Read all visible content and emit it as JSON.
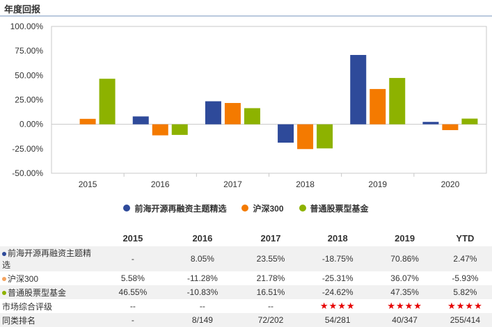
{
  "header": {
    "title": "年度回报"
  },
  "chart_data": {
    "type": "bar",
    "categories": [
      "2015",
      "2016",
      "2017",
      "2018",
      "2019",
      "2020"
    ],
    "series": [
      {
        "name": "前海开源再融资主题精选",
        "color": "#2e4a9a",
        "values": [
          null,
          8.05,
          23.55,
          -18.75,
          70.86,
          2.47
        ]
      },
      {
        "name": "沪深300",
        "color": "#f47a00",
        "values": [
          5.58,
          -11.28,
          21.78,
          -25.31,
          36.07,
          -5.93
        ]
      },
      {
        "name": "普通股票型基金",
        "color": "#8db200",
        "values": [
          46.55,
          -10.83,
          16.51,
          -24.62,
          47.35,
          5.82
        ]
      }
    ],
    "yticks": [
      "100.00%",
      "75.00%",
      "50.00%",
      "25.00%",
      "0.00%",
      "-25.00%",
      "-50.00%"
    ],
    "ylim": [
      -50,
      100
    ],
    "grid": false,
    "legend_position": "bottom"
  },
  "table": {
    "headers": [
      "",
      "2015",
      "2016",
      "2017",
      "2018",
      "2019",
      "YTD"
    ],
    "rows": [
      {
        "label": "前海开源再融资主题精选",
        "dot_color": "#2e4a9a",
        "cells": [
          "-",
          "8.05%",
          "23.55%",
          "-18.75%",
          "70.86%",
          "2.47%"
        ]
      },
      {
        "label": "沪深300",
        "dot_color": "#f4a460",
        "cells": [
          "5.58%",
          "-11.28%",
          "21.78%",
          "-25.31%",
          "36.07%",
          "-5.93%"
        ]
      },
      {
        "label": "普通股票型基金",
        "dot_color": "#8db200",
        "cells": [
          "46.55%",
          "-10.83%",
          "16.51%",
          "-24.62%",
          "47.35%",
          "5.82%"
        ]
      },
      {
        "label": "市场综合评级",
        "cells": [
          "--",
          "--",
          "--",
          "★★★★",
          "★★★★",
          "★★★★"
        ]
      },
      {
        "label": "同类排名",
        "cells": [
          "-",
          "8/149",
          "72/202",
          "54/281",
          "40/347",
          "255/414"
        ]
      }
    ]
  }
}
